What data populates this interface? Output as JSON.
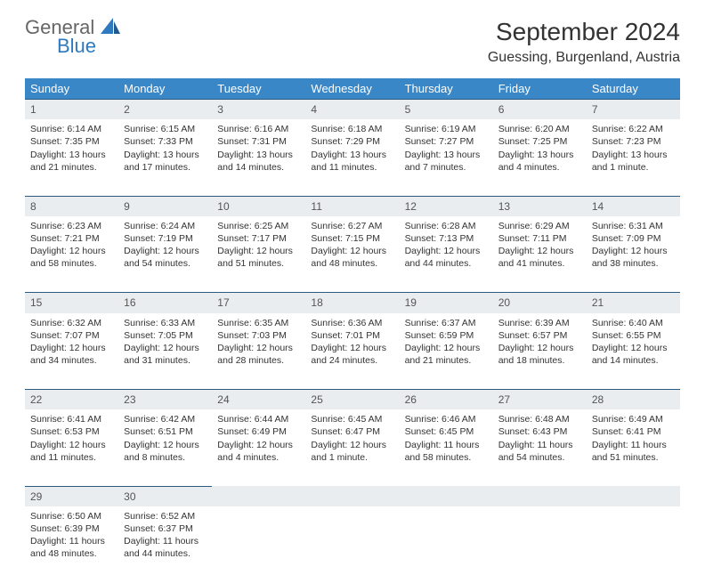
{
  "logo": {
    "text_general": "General",
    "text_blue": "Blue"
  },
  "title": "September 2024",
  "location": "Guessing, Burgenland, Austria",
  "colors": {
    "header_bg": "#3a87c8",
    "header_text": "#ffffff",
    "daynum_bg": "#e9edf0",
    "border": "#2c5a80",
    "logo_blue": "#2f7abf",
    "logo_gray": "#666666"
  },
  "day_headers": [
    "Sunday",
    "Monday",
    "Tuesday",
    "Wednesday",
    "Thursday",
    "Friday",
    "Saturday"
  ],
  "weeks": [
    [
      {
        "n": "1",
        "sr": "6:14 AM",
        "ss": "7:35 PM",
        "dl": "13 hours and 21 minutes."
      },
      {
        "n": "2",
        "sr": "6:15 AM",
        "ss": "7:33 PM",
        "dl": "13 hours and 17 minutes."
      },
      {
        "n": "3",
        "sr": "6:16 AM",
        "ss": "7:31 PM",
        "dl": "13 hours and 14 minutes."
      },
      {
        "n": "4",
        "sr": "6:18 AM",
        "ss": "7:29 PM",
        "dl": "13 hours and 11 minutes."
      },
      {
        "n": "5",
        "sr": "6:19 AM",
        "ss": "7:27 PM",
        "dl": "13 hours and 7 minutes."
      },
      {
        "n": "6",
        "sr": "6:20 AM",
        "ss": "7:25 PM",
        "dl": "13 hours and 4 minutes."
      },
      {
        "n": "7",
        "sr": "6:22 AM",
        "ss": "7:23 PM",
        "dl": "13 hours and 1 minute."
      }
    ],
    [
      {
        "n": "8",
        "sr": "6:23 AM",
        "ss": "7:21 PM",
        "dl": "12 hours and 58 minutes."
      },
      {
        "n": "9",
        "sr": "6:24 AM",
        "ss": "7:19 PM",
        "dl": "12 hours and 54 minutes."
      },
      {
        "n": "10",
        "sr": "6:25 AM",
        "ss": "7:17 PM",
        "dl": "12 hours and 51 minutes."
      },
      {
        "n": "11",
        "sr": "6:27 AM",
        "ss": "7:15 PM",
        "dl": "12 hours and 48 minutes."
      },
      {
        "n": "12",
        "sr": "6:28 AM",
        "ss": "7:13 PM",
        "dl": "12 hours and 44 minutes."
      },
      {
        "n": "13",
        "sr": "6:29 AM",
        "ss": "7:11 PM",
        "dl": "12 hours and 41 minutes."
      },
      {
        "n": "14",
        "sr": "6:31 AM",
        "ss": "7:09 PM",
        "dl": "12 hours and 38 minutes."
      }
    ],
    [
      {
        "n": "15",
        "sr": "6:32 AM",
        "ss": "7:07 PM",
        "dl": "12 hours and 34 minutes."
      },
      {
        "n": "16",
        "sr": "6:33 AM",
        "ss": "7:05 PM",
        "dl": "12 hours and 31 minutes."
      },
      {
        "n": "17",
        "sr": "6:35 AM",
        "ss": "7:03 PM",
        "dl": "12 hours and 28 minutes."
      },
      {
        "n": "18",
        "sr": "6:36 AM",
        "ss": "7:01 PM",
        "dl": "12 hours and 24 minutes."
      },
      {
        "n": "19",
        "sr": "6:37 AM",
        "ss": "6:59 PM",
        "dl": "12 hours and 21 minutes."
      },
      {
        "n": "20",
        "sr": "6:39 AM",
        "ss": "6:57 PM",
        "dl": "12 hours and 18 minutes."
      },
      {
        "n": "21",
        "sr": "6:40 AM",
        "ss": "6:55 PM",
        "dl": "12 hours and 14 minutes."
      }
    ],
    [
      {
        "n": "22",
        "sr": "6:41 AM",
        "ss": "6:53 PM",
        "dl": "12 hours and 11 minutes."
      },
      {
        "n": "23",
        "sr": "6:42 AM",
        "ss": "6:51 PM",
        "dl": "12 hours and 8 minutes."
      },
      {
        "n": "24",
        "sr": "6:44 AM",
        "ss": "6:49 PM",
        "dl": "12 hours and 4 minutes."
      },
      {
        "n": "25",
        "sr": "6:45 AM",
        "ss": "6:47 PM",
        "dl": "12 hours and 1 minute."
      },
      {
        "n": "26",
        "sr": "6:46 AM",
        "ss": "6:45 PM",
        "dl": "11 hours and 58 minutes."
      },
      {
        "n": "27",
        "sr": "6:48 AM",
        "ss": "6:43 PM",
        "dl": "11 hours and 54 minutes."
      },
      {
        "n": "28",
        "sr": "6:49 AM",
        "ss": "6:41 PM",
        "dl": "11 hours and 51 minutes."
      }
    ],
    [
      {
        "n": "29",
        "sr": "6:50 AM",
        "ss": "6:39 PM",
        "dl": "11 hours and 48 minutes."
      },
      {
        "n": "30",
        "sr": "6:52 AM",
        "ss": "6:37 PM",
        "dl": "11 hours and 44 minutes."
      },
      null,
      null,
      null,
      null,
      null
    ]
  ],
  "labels": {
    "sunrise": "Sunrise: ",
    "sunset": "Sunset: ",
    "daylight": "Daylight: "
  }
}
